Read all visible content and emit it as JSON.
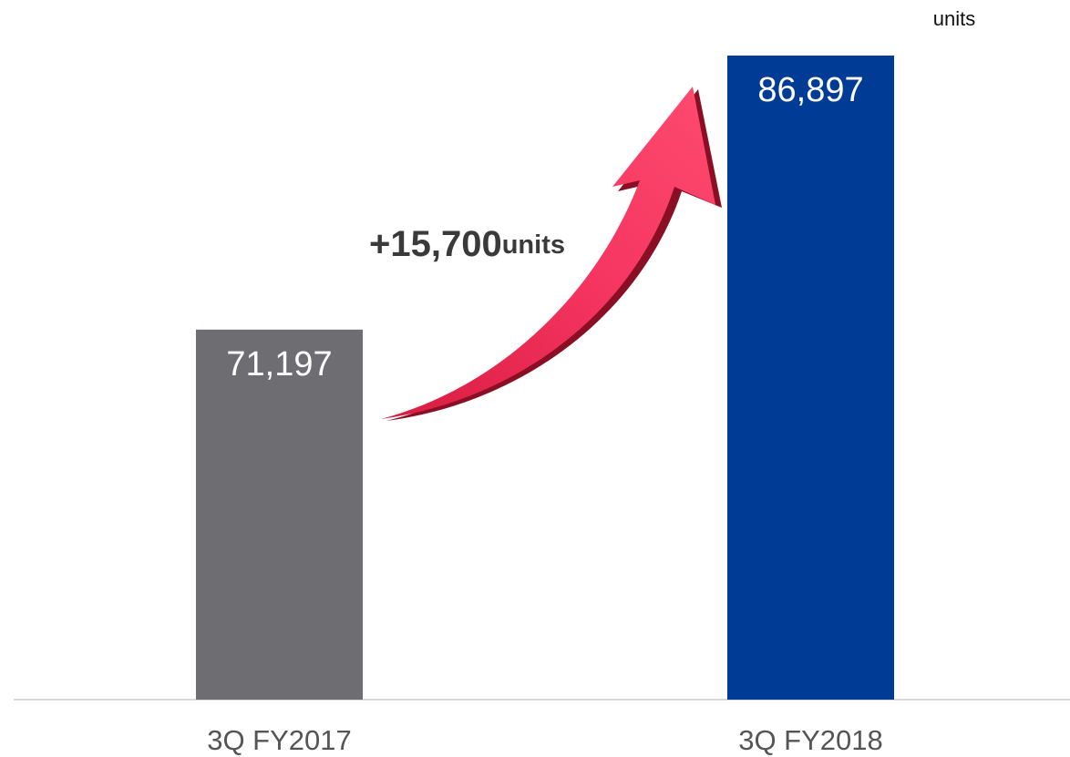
{
  "chart_data": {
    "type": "bar",
    "unit": "units",
    "categories": [
      "3Q FY2017",
      "3Q FY2018"
    ],
    "values": [
      71197,
      86897
    ],
    "value_labels": [
      "71,197",
      "86,897"
    ],
    "colors": [
      "#6e6d72",
      "#003b95"
    ],
    "annotation": {
      "text": "+15,700",
      "unit": "units"
    },
    "ylim": [
      50000,
      87000
    ]
  }
}
